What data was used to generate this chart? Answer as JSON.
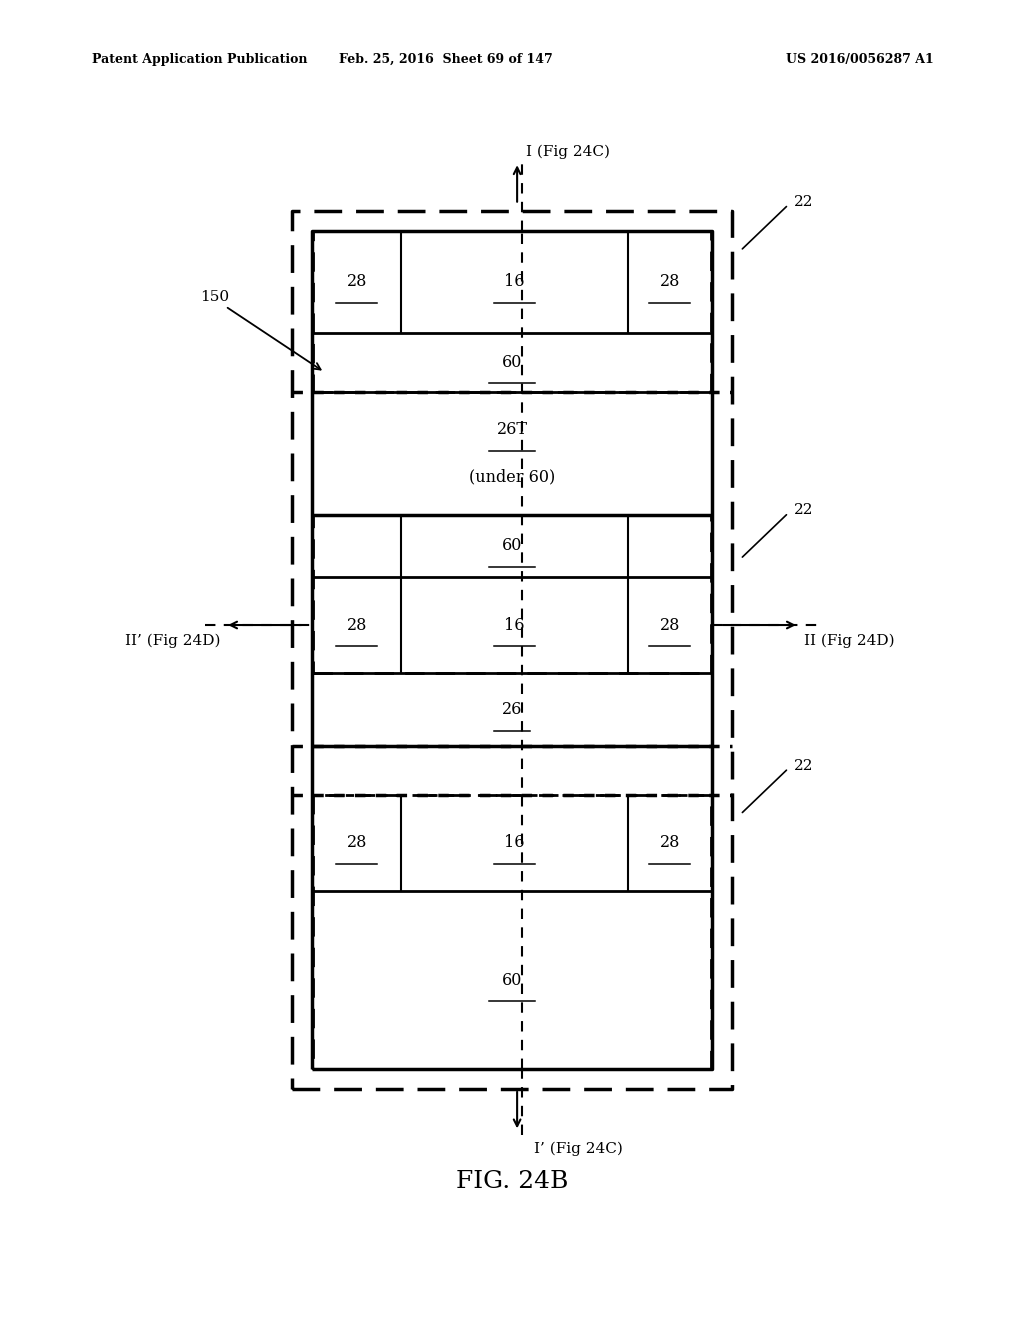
{
  "bg_color": "#ffffff",
  "text_color": "#000000",
  "header_left": "Patent Application Publication",
  "header_mid": "Feb. 25, 2016  Sheet 69 of 147",
  "header_right": "US 2016/0056287 A1",
  "fig_label": "FIG. 24B"
}
